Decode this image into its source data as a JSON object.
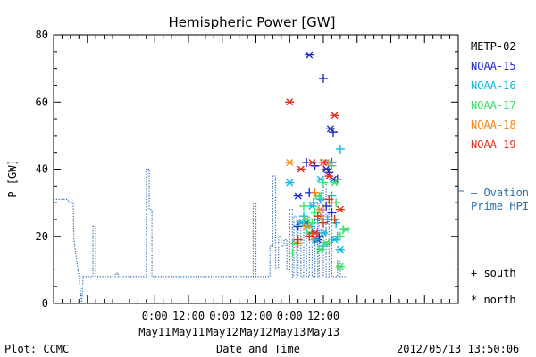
{
  "chart_data": {
    "type": "line",
    "title": "Hemispheric Power [GW]",
    "ylabel": "P [GW]",
    "xlabel": "Date and Time",
    "ylim": [
      0,
      80
    ],
    "xlim_hours": [
      -36,
      108
    ],
    "yticks": [
      0,
      20,
      40,
      60,
      80
    ],
    "xticks": [
      {
        "hour": 0,
        "time": "0:00",
        "date": "May11"
      },
      {
        "hour": 12,
        "time": "12:00",
        "date": "May11"
      },
      {
        "hour": 24,
        "time": "0:00",
        "date": "May12"
      },
      {
        "hour": 36,
        "time": "12:00",
        "date": "May12"
      },
      {
        "hour": 48,
        "time": "0:00",
        "date": "May13"
      },
      {
        "hour": 60,
        "time": "12:00",
        "date": "May13"
      }
    ],
    "ovation": {
      "name": "Ovation Prime HPI",
      "label_lines": [
        "— Ovation",
        "Prime HPI"
      ],
      "color": "#2a6fb4",
      "points": [
        [
          -36,
          31
        ],
        [
          -31,
          31
        ],
        [
          -30.5,
          30
        ],
        [
          -29,
          30
        ],
        [
          -28.8,
          19
        ],
        [
          -27,
          8
        ],
        [
          -26,
          0
        ],
        [
          -25.5,
          8
        ],
        [
          -22,
          8
        ],
        [
          -22,
          23
        ],
        [
          -21,
          23
        ],
        [
          -21,
          8
        ],
        [
          -14,
          8
        ],
        [
          -14,
          9
        ],
        [
          -13,
          9
        ],
        [
          -13,
          8
        ],
        [
          -3,
          8
        ],
        [
          -3,
          40
        ],
        [
          -2,
          40
        ],
        [
          -2,
          28
        ],
        [
          -1,
          28
        ],
        [
          -1,
          8
        ],
        [
          35,
          8
        ],
        [
          35,
          30
        ],
        [
          36,
          30
        ],
        [
          36,
          8
        ],
        [
          41,
          8
        ],
        [
          41,
          17
        ],
        [
          42,
          17
        ],
        [
          42,
          38
        ],
        [
          43,
          38
        ],
        [
          43,
          10
        ],
        [
          44,
          10
        ],
        [
          44,
          20
        ],
        [
          45,
          20
        ],
        [
          45,
          17
        ],
        [
          46,
          17
        ],
        [
          46,
          19
        ],
        [
          47,
          19
        ],
        [
          47,
          10
        ],
        [
          48,
          10
        ],
        [
          48,
          28
        ],
        [
          49,
          28
        ],
        [
          49,
          8
        ],
        [
          49.5,
          8
        ],
        [
          49.5,
          26
        ],
        [
          50.5,
          26
        ],
        [
          50.5,
          8
        ],
        [
          51,
          8
        ],
        [
          51,
          25
        ],
        [
          52,
          25
        ],
        [
          52,
          8
        ],
        [
          53,
          8
        ],
        [
          53,
          22
        ],
        [
          54,
          22
        ],
        [
          54,
          8
        ],
        [
          55,
          8
        ],
        [
          55,
          20
        ],
        [
          56,
          20
        ],
        [
          56,
          8
        ],
        [
          57,
          8
        ],
        [
          57,
          30
        ],
        [
          58,
          30
        ],
        [
          58,
          8
        ],
        [
          58.5,
          8
        ],
        [
          58.5,
          33
        ],
        [
          59.5,
          33
        ],
        [
          59.5,
          8
        ],
        [
          60,
          8
        ],
        [
          60,
          36
        ],
        [
          61,
          36
        ],
        [
          61,
          8
        ],
        [
          62,
          8
        ],
        [
          62,
          30
        ],
        [
          63,
          30
        ],
        [
          63,
          8
        ],
        [
          65,
          8
        ],
        [
          65,
          13
        ],
        [
          66,
          13
        ],
        [
          66,
          8
        ],
        [
          68,
          8
        ]
      ]
    },
    "series": [
      {
        "name": "METP-02",
        "color": "#000000",
        "points": []
      },
      {
        "name": "NOAA-15",
        "color": "#1f2ec8",
        "plus": [
          [
            54,
            42
          ],
          [
            55,
            33
          ],
          [
            57,
            41
          ],
          [
            60,
            67
          ],
          [
            63,
            42
          ],
          [
            63.5,
            51
          ],
          [
            65,
            37
          ],
          [
            62,
            39
          ],
          [
            51,
            23
          ],
          [
            56,
            21
          ],
          [
            58.5,
            20
          ],
          [
            61,
            29
          ],
          [
            63,
            27
          ]
        ],
        "star": [
          [
            55,
            74
          ],
          [
            62.5,
            52
          ],
          [
            61,
            40
          ],
          [
            51,
            32
          ],
          [
            58,
            19
          ],
          [
            63.5,
            37
          ],
          [
            54,
            24
          ]
        ]
      },
      {
        "name": "NOAA-16",
        "color": "#10b8e0",
        "plus": [
          [
            66,
            46
          ],
          [
            58,
            25
          ],
          [
            59,
            31
          ],
          [
            61.5,
            25
          ],
          [
            63,
            32
          ],
          [
            53,
            26
          ],
          [
            65,
            20
          ],
          [
            64.5,
            24
          ],
          [
            60,
            17
          ],
          [
            56.5,
            30
          ]
        ],
        "star": [
          [
            48,
            36
          ],
          [
            52,
            24
          ],
          [
            57,
            19
          ],
          [
            60,
            21
          ],
          [
            64,
            19
          ],
          [
            66,
            16
          ],
          [
            56,
            29
          ],
          [
            62,
            42
          ],
          [
            55,
            23
          ],
          [
            59,
            37
          ]
        ]
      },
      {
        "name": "NOAA-17",
        "color": "#3ce06a",
        "plus": [
          [
            49,
            15
          ],
          [
            53,
            29
          ],
          [
            57,
            27
          ],
          [
            60,
            36
          ],
          [
            63,
            41
          ],
          [
            66,
            20
          ],
          [
            56,
            24
          ],
          [
            64.5,
            30
          ],
          [
            67,
            22
          ]
        ],
        "star": [
          [
            50,
            18
          ],
          [
            54,
            25
          ],
          [
            58,
            32
          ],
          [
            61,
            18
          ],
          [
            64,
            36
          ],
          [
            66,
            11
          ],
          [
            68,
            22
          ],
          [
            55,
            21
          ],
          [
            59,
            16
          ]
        ]
      },
      {
        "name": "NOAA-18",
        "color": "#f08a1a",
        "plus": [
          [
            51,
            18
          ],
          [
            56,
            20
          ],
          [
            59,
            26
          ],
          [
            63,
            30
          ],
          [
            57,
            33
          ]
        ],
        "star": [
          [
            48,
            42
          ],
          [
            54,
            23
          ],
          [
            59,
            28
          ],
          [
            61,
            42
          ]
        ]
      },
      {
        "name": "NOAA-19",
        "color": "#e0301e",
        "plus": [
          [
            51,
            19
          ],
          [
            55,
            20
          ],
          [
            58,
            26
          ],
          [
            62,
            31
          ],
          [
            64,
            25
          ],
          [
            60,
            24
          ]
        ],
        "star": [
          [
            48,
            60
          ],
          [
            52,
            40
          ],
          [
            56,
            42
          ],
          [
            60,
            42
          ],
          [
            64,
            56
          ],
          [
            66,
            28
          ],
          [
            62,
            38
          ],
          [
            57,
            21
          ]
        ]
      }
    ],
    "marker_legend": [
      {
        "symbol": "+",
        "label": "south"
      },
      {
        "symbol": "*",
        "label": "north"
      }
    ]
  },
  "footer": {
    "plot_label": "Plot: CCMC",
    "timestamp": "2012/05/13  13:50:06"
  }
}
